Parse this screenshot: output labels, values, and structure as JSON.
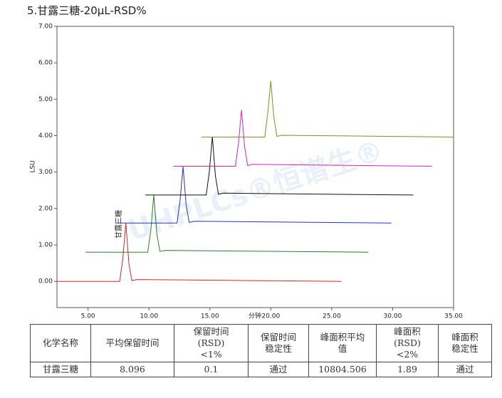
{
  "page_title": "5.甘露三糖-20μL-RSD%",
  "chart_data": {
    "type": "line",
    "y_label": "LSU",
    "x_label": "分钟",
    "annotation": "甘露三糖",
    "watermark": "UHPLCs®恒谱生®",
    "xlim": [
      2.45,
      35
    ],
    "ylim": [
      -0.72,
      7
    ],
    "xticks": [
      {
        "value": 5,
        "label": "5.00"
      },
      {
        "value": 10,
        "label": "10.00"
      },
      {
        "value": 15,
        "label": "15.00"
      },
      {
        "value": 20,
        "label": "20.00"
      },
      {
        "value": 25,
        "label": "25.00"
      },
      {
        "value": 30,
        "label": "30.00"
      },
      {
        "value": 35,
        "label": "35.00"
      }
    ],
    "yticks": [
      {
        "value": 0,
        "label": "0.00"
      },
      {
        "value": 1,
        "label": "1.00"
      },
      {
        "value": 2,
        "label": "2.00"
      },
      {
        "value": 3,
        "label": "3.00"
      },
      {
        "value": 4,
        "label": "4.00"
      },
      {
        "value": 5,
        "label": "5.00"
      },
      {
        "value": 6,
        "label": "6.00"
      },
      {
        "value": 7,
        "label": "7.00"
      }
    ],
    "series": [
      {
        "color": "#d9262a",
        "x": [
          2.45,
          7.6,
          7.85,
          8.1,
          8.35,
          8.6,
          9.0,
          25.8
        ],
        "values": [
          0,
          0,
          0.6,
          1.6,
          0.5,
          0.02,
          0.05,
          0
        ]
      },
      {
        "color": "#2e7d32",
        "x": [
          4.8,
          9.9,
          10.15,
          10.4,
          10.65,
          10.9,
          11.3,
          28.0
        ],
        "values": [
          0.8,
          0.8,
          1.4,
          2.37,
          1.3,
          0.82,
          0.85,
          0.8
        ]
      },
      {
        "color": "#2433c8",
        "x": [
          7.3,
          12.3,
          12.55,
          12.8,
          13.05,
          13.3,
          13.8,
          29.9
        ],
        "values": [
          1.6,
          1.6,
          2.2,
          3.15,
          2.1,
          1.62,
          1.65,
          1.6
        ]
      },
      {
        "color": "#111111",
        "x": [
          9.7,
          14.7,
          14.95,
          15.2,
          15.45,
          15.7,
          16.1,
          31.7
        ],
        "values": [
          2.37,
          2.37,
          3.0,
          3.97,
          2.9,
          2.39,
          2.42,
          2.37
        ]
      },
      {
        "color": "#e020c0",
        "x": [
          12.0,
          17.1,
          17.35,
          17.6,
          17.85,
          18.1,
          18.5,
          33.2
        ],
        "values": [
          3.16,
          3.16,
          3.8,
          4.7,
          3.7,
          3.18,
          3.21,
          3.16
        ]
      },
      {
        "color": "#8a8a1e",
        "x": [
          14.3,
          19.5,
          19.75,
          20.0,
          20.25,
          20.5,
          20.9,
          35.0
        ],
        "values": [
          3.96,
          3.96,
          4.6,
          5.5,
          4.5,
          3.98,
          4.01,
          3.96
        ]
      }
    ]
  },
  "table": {
    "header": [
      "化学名称",
      "平均保留时间",
      "保留时间\n(RSD)\n<1%",
      "保留时间\n稳定性",
      "峰面积平均\n值",
      "峰面积\n(RSD)\n<2%",
      "峰面积\n稳定性"
    ],
    "rows": [
      [
        "甘露三糖",
        "8.096",
        "0.1",
        "通过",
        "10804.506",
        "1.89",
        "通过"
      ]
    ]
  }
}
